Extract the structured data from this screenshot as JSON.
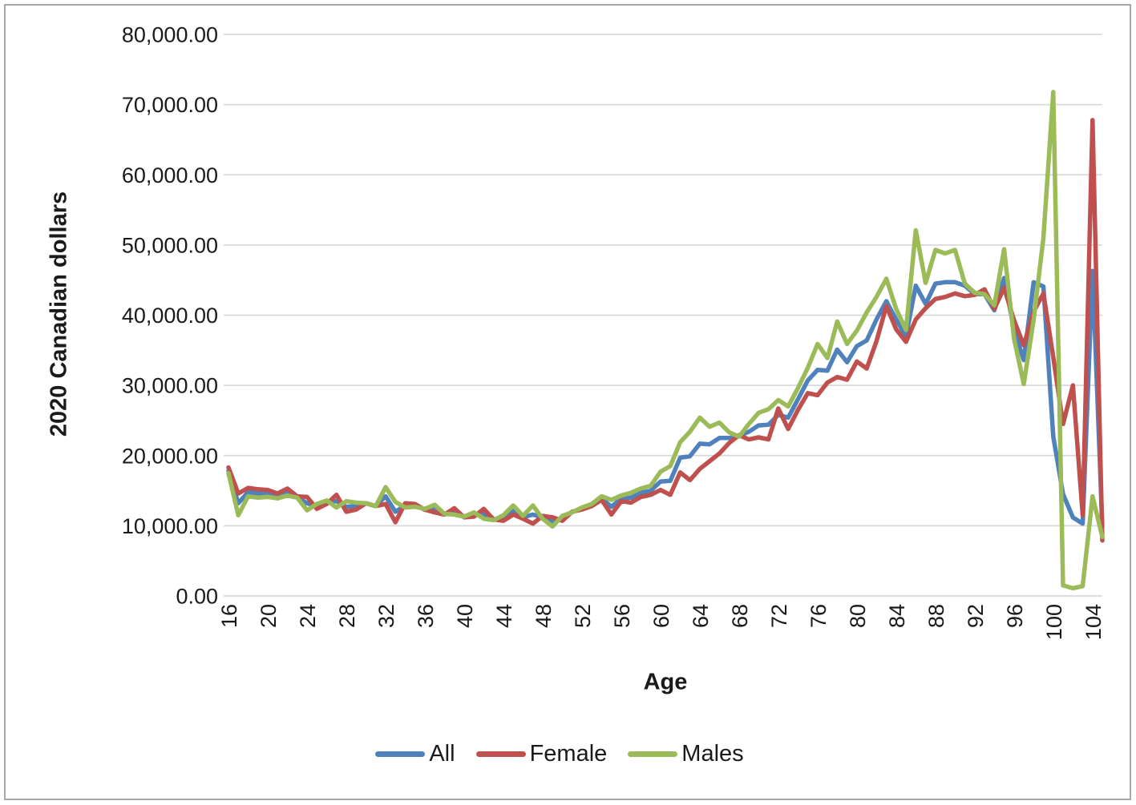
{
  "page": {
    "background": "#ffffff",
    "border_color": "#a6a6a6",
    "text_color": "#1a1a1a",
    "gridline_color": "#d9d9d9"
  },
  "chart_data": {
    "type": "line",
    "title": "",
    "xlabel": "Age",
    "ylabel": "2020 Canadian dollars",
    "xlim": [
      16,
      105
    ],
    "ylim": [
      0,
      80000
    ],
    "grid": "horizontal",
    "legend_position": "bottom-center",
    "x_tick_labels": [
      "16",
      "20",
      "24",
      "28",
      "32",
      "36",
      "40",
      "44",
      "48",
      "52",
      "56",
      "60",
      "64",
      "68",
      "72",
      "76",
      "80",
      "84",
      "88",
      "92",
      "96",
      "100",
      "104"
    ],
    "y_ticks": [
      {
        "value": 0,
        "label": "0.00"
      },
      {
        "value": 10000,
        "label": "10,000.00"
      },
      {
        "value": 20000,
        "label": "20,000.00"
      },
      {
        "value": 30000,
        "label": "30,000.00"
      },
      {
        "value": 40000,
        "label": "40,000.00"
      },
      {
        "value": 50000,
        "label": "50,000.00"
      },
      {
        "value": 60000,
        "label": "60,000.00"
      },
      {
        "value": 70000,
        "label": "70,000.00"
      },
      {
        "value": 80000,
        "label": "80,000.00"
      }
    ],
    "x": [
      16,
      17,
      18,
      19,
      20,
      21,
      22,
      23,
      24,
      25,
      26,
      27,
      28,
      29,
      30,
      31,
      32,
      33,
      34,
      35,
      36,
      37,
      38,
      39,
      40,
      41,
      42,
      43,
      44,
      45,
      46,
      47,
      48,
      49,
      50,
      51,
      52,
      53,
      54,
      55,
      56,
      57,
      58,
      59,
      60,
      61,
      62,
      63,
      64,
      65,
      66,
      67,
      68,
      69,
      70,
      71,
      72,
      73,
      74,
      75,
      76,
      77,
      78,
      79,
      80,
      81,
      82,
      83,
      84,
      85,
      86,
      87,
      88,
      89,
      90,
      91,
      92,
      93,
      94,
      95,
      96,
      97,
      98,
      99,
      100,
      101,
      102,
      103,
      104,
      105
    ],
    "series": [
      {
        "name": "All",
        "color": "#4F81BD",
        "values": [
          17800,
          13200,
          14800,
          14600,
          14600,
          14300,
          14800,
          14100,
          13200,
          12800,
          13400,
          13500,
          12700,
          12800,
          13200,
          12800,
          14200,
          12000,
          12900,
          12900,
          12300,
          12500,
          11700,
          12100,
          11300,
          11600,
          11700,
          10900,
          11100,
          12200,
          11200,
          11600,
          11200,
          10600,
          11000,
          12000,
          12400,
          12900,
          13900,
          12700,
          13900,
          14000,
          14700,
          15000,
          16300,
          16400,
          19700,
          19900,
          21700,
          21600,
          22500,
          22500,
          22800,
          23400,
          24300,
          24400,
          25800,
          25400,
          28000,
          30700,
          32200,
          32100,
          35100,
          33300,
          35600,
          36400,
          39400,
          42000,
          39400,
          37000,
          44200,
          41600,
          44500,
          44700,
          44700,
          44200,
          43000,
          43000,
          40700,
          45300,
          38000,
          33600,
          44700,
          44100,
          22700,
          14500,
          11200,
          10300,
          46300,
          9900
        ]
      },
      {
        "name": "Female",
        "color": "#C0504D",
        "values": [
          18300,
          14600,
          15400,
          15200,
          15100,
          14600,
          15300,
          14200,
          14100,
          12400,
          13100,
          14400,
          12000,
          12300,
          13200,
          12800,
          13100,
          10500,
          13200,
          13100,
          12300,
          11900,
          11600,
          12500,
          11200,
          11300,
          12400,
          10900,
          10700,
          11600,
          11000,
          10300,
          11400,
          11200,
          10700,
          12000,
          12300,
          12800,
          13700,
          11600,
          13500,
          13300,
          14100,
          14400,
          15100,
          14400,
          17600,
          16500,
          18100,
          19200,
          20300,
          21800,
          22900,
          22300,
          22600,
          22300,
          26700,
          23800,
          26500,
          28900,
          28600,
          30400,
          31200,
          30800,
          33400,
          32400,
          36300,
          41300,
          38000,
          36200,
          39400,
          41000,
          42300,
          42600,
          43100,
          42700,
          42900,
          43700,
          40900,
          43900,
          39300,
          35700,
          40500,
          43100,
          34000,
          24500,
          30000,
          11500,
          67800,
          7900
        ]
      },
      {
        "name": "Males",
        "color": "#9BBB59",
        "values": [
          17500,
          11500,
          14200,
          14000,
          14100,
          13900,
          14300,
          14000,
          12200,
          13100,
          13600,
          12600,
          13500,
          13300,
          13200,
          12800,
          15500,
          13400,
          12600,
          12700,
          12400,
          13000,
          11700,
          11600,
          11300,
          11900,
          11000,
          10800,
          11500,
          12900,
          11400,
          12900,
          11000,
          9900,
          11400,
          11900,
          12600,
          13100,
          14200,
          13700,
          14300,
          14700,
          15300,
          15700,
          17700,
          18500,
          21900,
          23400,
          25400,
          24100,
          24700,
          23300,
          22700,
          24500,
          26100,
          26600,
          27900,
          27000,
          29600,
          32500,
          35900,
          33900,
          39100,
          35900,
          37800,
          40400,
          42600,
          45200,
          40900,
          37900,
          52100,
          44600,
          49300,
          48800,
          49300,
          44500,
          43200,
          43000,
          41400,
          49400,
          36700,
          30200,
          39300,
          51000,
          71800,
          1500,
          1100,
          1400,
          14200,
          8400
        ]
      }
    ]
  }
}
